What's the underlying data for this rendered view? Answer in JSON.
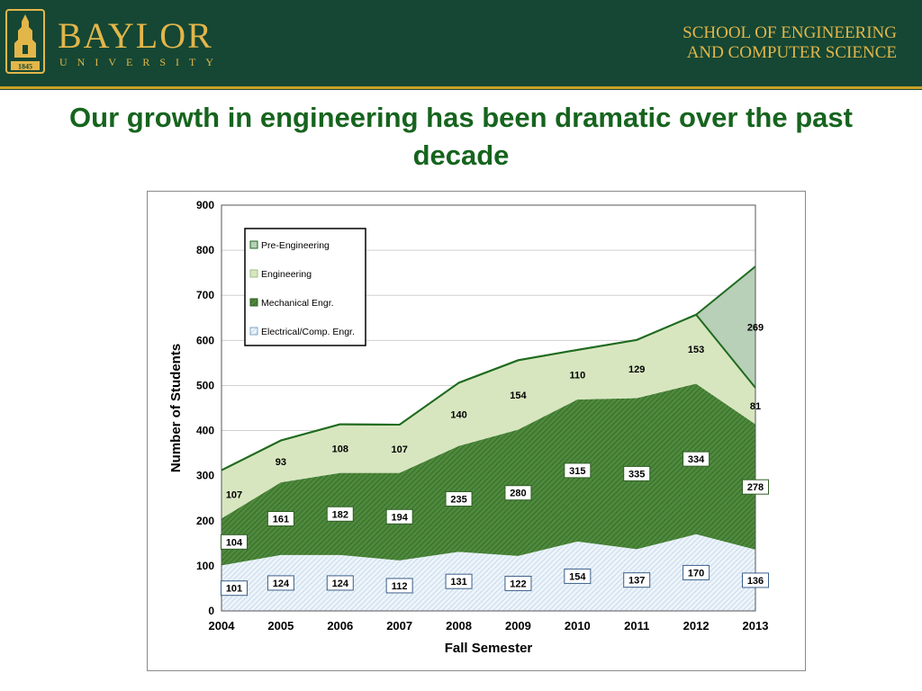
{
  "header": {
    "brand": "BAYLOR",
    "brand_sub": "UNIVERSITY",
    "crest_year": "1845",
    "school_line1": "SCHOOL OF ENGINEERING",
    "school_line2": "AND COMPUTER SCIENCE"
  },
  "slide": {
    "title": "Our growth in engineering has been dramatic over the past decade"
  },
  "colors": {
    "header_green": "#154734",
    "gold": "#e3b64a",
    "title_green": "#16641e",
    "pre_engineering": "#b8cfb8",
    "engineering": "#d8e6c0",
    "mechanical": "#4e8a3c",
    "electrical": "#bcd4e8"
  },
  "chart_data": {
    "type": "area",
    "stacked": true,
    "xlabel": "Fall Semester",
    "ylabel": "Number of Students",
    "ylim": [
      0,
      900
    ],
    "yticks": [
      0,
      100,
      200,
      300,
      400,
      500,
      600,
      700,
      800,
      900
    ],
    "grid": true,
    "legend_position": "top-left",
    "categories": [
      "2004",
      "2005",
      "2006",
      "2007",
      "2008",
      "2009",
      "2010",
      "2011",
      "2012",
      "2013"
    ],
    "series": [
      {
        "name": "Electrical/Comp. Engr.",
        "values": [
          101,
          124,
          124,
          112,
          131,
          122,
          154,
          137,
          170,
          136
        ]
      },
      {
        "name": "Mechanical Engr.",
        "values": [
          104,
          161,
          182,
          194,
          235,
          280,
          315,
          335,
          334,
          278
        ]
      },
      {
        "name": "Engineering",
        "values": [
          107,
          93,
          108,
          107,
          140,
          154,
          110,
          129,
          153,
          81
        ]
      },
      {
        "name": "Pre-Engineering",
        "values": [
          0,
          0,
          0,
          0,
          0,
          0,
          0,
          0,
          0,
          269
        ]
      }
    ],
    "legend_order": [
      "Pre-Engineering",
      "Engineering",
      "Mechanical Engr.",
      "Electrical/Comp. Engr."
    ]
  }
}
